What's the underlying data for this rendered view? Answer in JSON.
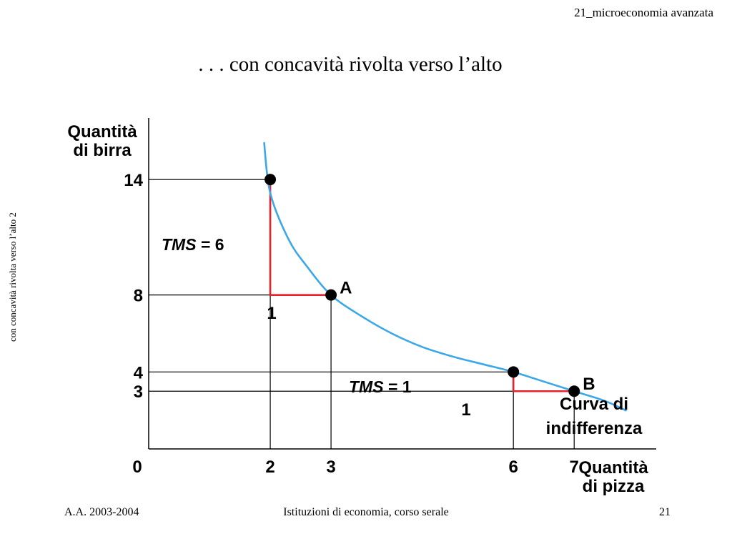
{
  "header": {
    "course": "21_microeconomia avanzata"
  },
  "slide": {
    "title": ". . . con concavità rivolta verso l’alto",
    "side_note": "con concavità rivolta verso l’alto 2"
  },
  "footer": {
    "left": "A.A. 2003-2004",
    "center": "Istituzioni di economia, corso serale",
    "page": "21"
  },
  "colors": {
    "curve": "#3ba7e8",
    "tms_lines": "#e8202c",
    "axes": "#000000"
  },
  "chart_data": {
    "type": "line",
    "ylabel_lines": [
      "Quantità",
      "di birra"
    ],
    "xlabel_lines": [
      "Quantità",
      "di pizza"
    ],
    "origin_label": "0",
    "x_ticks": [
      "2",
      "3",
      "6",
      "7"
    ],
    "y_ticks": [
      "14",
      "8",
      "4",
      "3"
    ],
    "xlim": [
      0,
      8.35
    ],
    "ylim": [
      0,
      17.2
    ],
    "series": [
      {
        "name": "Curva di indifferenza",
        "curve": [
          [
            1.9,
            15.9
          ],
          [
            2.0,
            13.3
          ],
          [
            2.3,
            10.9
          ],
          [
            2.6,
            9.5
          ],
          [
            3.0,
            8.0
          ],
          [
            3.5,
            6.9
          ],
          [
            4.0,
            6.0
          ],
          [
            4.5,
            5.3
          ],
          [
            5.0,
            4.8
          ],
          [
            5.5,
            4.4
          ],
          [
            6.0,
            4.0
          ],
          [
            6.5,
            3.5
          ],
          [
            7.0,
            3.0
          ],
          [
            7.5,
            2.5
          ],
          [
            7.85,
            2.0
          ]
        ]
      }
    ],
    "points": [
      {
        "x": 2,
        "y": 14,
        "label": ""
      },
      {
        "x": 3,
        "y": 8,
        "label": "A"
      },
      {
        "x": 6,
        "y": 4,
        "label": ""
      },
      {
        "x": 7,
        "y": 3,
        "label": "B"
      }
    ],
    "tms_annotations": [
      {
        "from": [
          2,
          14
        ],
        "corner": [
          2,
          8
        ],
        "to": [
          3,
          8
        ],
        "tms_label": "TMS",
        "tms_value": " = 6",
        "step_label": "1"
      },
      {
        "from": [
          6,
          4
        ],
        "corner": [
          6,
          3
        ],
        "to": [
          7,
          3
        ],
        "tms_label": "TMS",
        "tms_value": " = 1",
        "step_label": "1"
      }
    ],
    "curve_label_lines": [
      "Curva di",
      "indifferenza"
    ]
  }
}
